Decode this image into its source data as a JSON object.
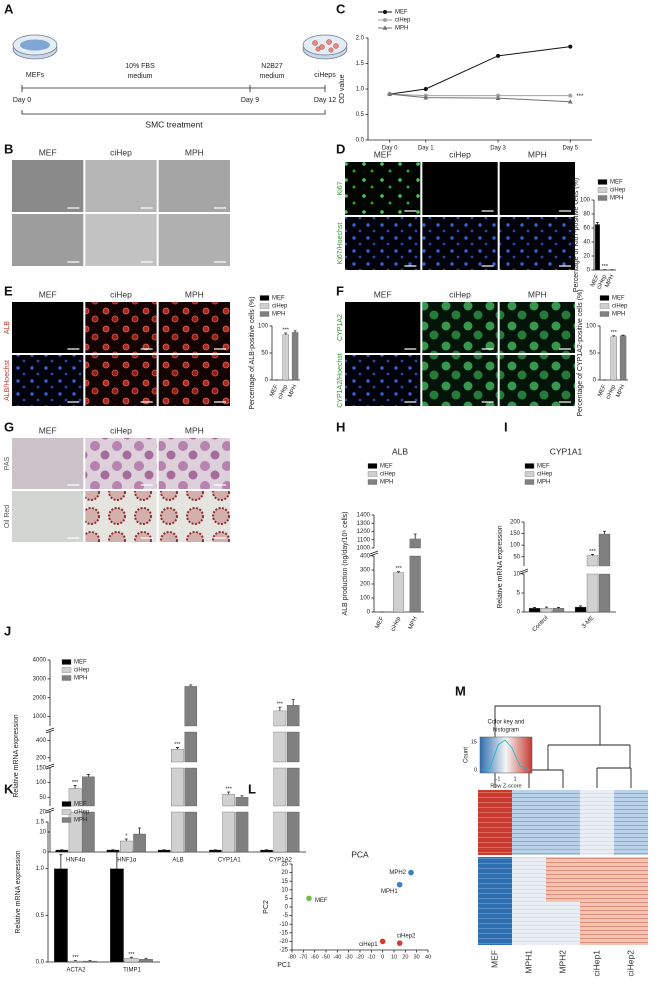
{
  "panel_letters": [
    "A",
    "B",
    "C",
    "D",
    "E",
    "F",
    "G",
    "H",
    "I",
    "J",
    "K",
    "L",
    "M"
  ],
  "diagram": {
    "start_cells": "MEFs",
    "medium_1": [
      "10% FBS",
      "medium"
    ],
    "medium_2": [
      "N2B27",
      "medium"
    ],
    "end_cells": "ciHeps",
    "days": [
      "Day 0",
      "Day 9",
      "Day 12"
    ],
    "treatment": "SMC treatment"
  },
  "images": {
    "B": {
      "columns": [
        "MEF",
        "ciHep",
        "MPH"
      ]
    },
    "D": {
      "columns": [
        "MEF",
        "ciHep",
        "MPH"
      ],
      "rows": [
        "Ki67",
        "Ki67/Hoechst"
      ]
    },
    "E": {
      "columns": [
        "MEF",
        "ciHep",
        "MPH"
      ],
      "rows": [
        "ALB",
        "ALB/Hoechst"
      ]
    },
    "F": {
      "columns": [
        "MEF",
        "ciHep",
        "MPH"
      ],
      "rows": [
        "CYP1A2",
        "CYP1A2/Hoechst"
      ]
    },
    "G": {
      "columns": [
        "MEF",
        "ciHep",
        "MPH"
      ],
      "rows": [
        "PAS",
        "Oil Red"
      ]
    }
  },
  "heatmap": {
    "key_title": [
      "Color key and",
      "histogram"
    ],
    "count_label": "Count",
    "count_ticks": [
      0,
      15
    ],
    "z_ticks": [
      -1,
      1
    ],
    "z_label": "Row Z-score",
    "columns": [
      "MEF",
      "MPH1",
      "MPH2",
      "ciHep1",
      "ciHep2"
    ]
  },
  "chart_data": [
    {
      "type": "line",
      "ylabel": "OD value",
      "x": [
        0,
        1,
        3,
        5
      ],
      "xlim": [
        -0.6,
        5.6
      ],
      "xticks": [
        {
          "value": 0,
          "label": "Day 0"
        },
        {
          "value": 1,
          "label": "Day 1"
        },
        {
          "value": 3,
          "label": "Day 3"
        },
        {
          "value": 5,
          "label": "Day 5"
        }
      ],
      "ylim": [
        0,
        2.0
      ],
      "yticks": [
        {
          "value": 0,
          "label": "0.0"
        },
        {
          "value": 0.5,
          "label": "0.5"
        },
        {
          "value": 1,
          "label": "1.0"
        },
        {
          "value": 1.5,
          "label": "1.5"
        },
        {
          "value": 2,
          "label": "2.0"
        }
      ],
      "series": [
        {
          "name": "MEF",
          "color": "#111111",
          "marker": "circle",
          "values": [
            0.9,
            1.0,
            1.65,
            1.83
          ]
        },
        {
          "name": "ciHep",
          "color": "#a0a0a0",
          "marker": "circle",
          "values": [
            0.9,
            0.87,
            0.87,
            0.87
          ]
        },
        {
          "name": "MPH",
          "color": "#707070",
          "marker": "triangle",
          "values": [
            0.9,
            0.83,
            0.82,
            0.75
          ]
        }
      ],
      "annotations": [
        {
          "text": "***",
          "series": 1
        }
      ]
    },
    {
      "type": "bar",
      "ylabel": "Percentage of Ki67-positive cells (%)",
      "categories": [
        "MEF",
        "ciHep",
        "MPH"
      ],
      "values": [
        65,
        0.5,
        0.5
      ],
      "errors": [
        3,
        0,
        0
      ],
      "colors": [
        "#000000",
        "#d0d0d0",
        "#808080"
      ],
      "ylim": [
        0,
        100
      ],
      "yticks": [
        0,
        20,
        40,
        60,
        80,
        100
      ],
      "annotations": [
        {
          "text": "***",
          "category": 1
        }
      ]
    },
    {
      "type": "bar",
      "ylabel": "Percentage of ALB-positive cells (%)",
      "categories": [
        "MEF",
        "ciHep",
        "MPH"
      ],
      "values": [
        0,
        84,
        88
      ],
      "errors": [
        0,
        3,
        3
      ],
      "colors": [
        "#000000",
        "#d0d0d0",
        "#808080"
      ],
      "ylim": [
        0,
        100
      ],
      "yticks": [
        0,
        50,
        100
      ],
      "annotations": [
        {
          "text": "***",
          "category": 1
        }
      ]
    },
    {
      "type": "bar",
      "ylabel": "Percentage of CYP1A2-positive cells (%)",
      "categories": [
        "MEF",
        "ciHep",
        "MPH"
      ],
      "values": [
        0,
        80,
        82
      ],
      "errors": [
        0,
        2,
        1
      ],
      "colors": [
        "#000000",
        "#d0d0d0",
        "#808080"
      ],
      "ylim": [
        0,
        100
      ],
      "yticks": [
        0,
        50,
        100
      ],
      "annotations": [
        {
          "text": "***",
          "category": 1
        }
      ]
    },
    {
      "type": "bar",
      "title": "ALB",
      "ylabel": "ALB production (ng/day/10⁶ cells)",
      "categories": [
        "MEF",
        "ciHep",
        "MPH"
      ],
      "values": [
        0,
        280,
        1110
      ],
      "errors": [
        0,
        8,
        60
      ],
      "colors": [
        "#000000",
        "#d0d0d0",
        "#808080"
      ],
      "y_segments": [
        {
          "ylim": [
            0,
            400
          ],
          "yticks": [
            0,
            100,
            200,
            300,
            400
          ]
        },
        {
          "ylim": [
            1000,
            1400
          ],
          "yticks": [
            1000,
            1100,
            1200,
            1300,
            1400
          ]
        }
      ],
      "annotations": [
        {
          "text": "***",
          "category": 1
        }
      ]
    },
    {
      "type": "bar",
      "title": "CYP1A1",
      "ylabel": "Relative mRNA expression",
      "categories": [
        "Control",
        "3-ME"
      ],
      "series": [
        {
          "name": "MEF",
          "color": "#000000",
          "values": [
            1,
            1.3
          ],
          "errors": [
            0.2,
            0.3
          ]
        },
        {
          "name": "ciHep",
          "color": "#d0d0d0",
          "values": [
            1,
            55
          ],
          "errors": [
            0.3,
            5
          ]
        },
        {
          "name": "MPH",
          "color": "#808080",
          "values": [
            1,
            148
          ],
          "errors": [
            0.2,
            12
          ]
        }
      ],
      "y_segments": [
        {
          "ylim": [
            0,
            10
          ],
          "yticks": [
            0,
            5,
            10
          ]
        },
        {
          "ylim": [
            10,
            200
          ],
          "yticks": [
            50,
            100,
            150,
            200
          ]
        }
      ],
      "annotations": [
        {
          "text": "***",
          "category": 1,
          "series": 1
        }
      ]
    },
    {
      "type": "bar",
      "ylabel": "Relative mRNA expression",
      "categories": [
        "HNF4α",
        "HNF1α",
        "ALB",
        "CYP1A1",
        "CYP1A2"
      ],
      "series": [
        {
          "name": "MEF",
          "color": "#000000",
          "values": [
            1,
            1,
            1,
            1,
            1
          ],
          "errors": [
            0.1,
            0.1,
            0.1,
            0.1,
            0.1
          ]
        },
        {
          "name": "ciHep",
          "color": "#d0d0d0",
          "values": [
            80,
            5.5,
            300,
            60,
            1300
          ],
          "errors": [
            10,
            1,
            20,
            8,
            200
          ]
        },
        {
          "name": "MPH",
          "color": "#808080",
          "values": [
            120,
            9,
            2600,
            50,
            1600
          ],
          "errors": [
            8,
            3,
            80,
            5,
            300
          ]
        }
      ],
      "y_segments": [
        {
          "ylim": [
            0,
            20
          ],
          "yticks": [
            0,
            10,
            20
          ]
        },
        {
          "ylim": [
            20,
            150
          ],
          "yticks": [
            50,
            100,
            150
          ]
        },
        {
          "ylim": [
            150,
            500
          ],
          "yticks": [
            200,
            400
          ]
        },
        {
          "ylim": [
            500,
            4000
          ],
          "yticks": [
            1000,
            2000,
            3000,
            4000
          ]
        }
      ],
      "annotations": [
        {
          "text": "***",
          "category": 0,
          "series": 1
        },
        {
          "text": "*",
          "category": 1,
          "series": 1
        },
        {
          "text": "***",
          "category": 2,
          "series": 1
        },
        {
          "text": "***",
          "category": 3,
          "series": 1
        },
        {
          "text": "***",
          "category": 4,
          "series": 1
        }
      ]
    },
    {
      "type": "bar",
      "ylabel": "Relative mRNA expression",
      "categories": [
        "ACTA2",
        "TIMP1"
      ],
      "series": [
        {
          "name": "MEF",
          "color": "#000000",
          "values": [
            1.0,
            1.0
          ],
          "errors": [
            0.15,
            0.18
          ]
        },
        {
          "name": "ciHep",
          "color": "#d0d0d0",
          "values": [
            0.01,
            0.04
          ],
          "errors": [
            0.005,
            0.01
          ]
        },
        {
          "name": "MPH",
          "color": "#808080",
          "values": [
            0.01,
            0.03
          ],
          "errors": [
            0.005,
            0.01
          ]
        }
      ],
      "ylim": [
        0,
        1.5
      ],
      "yticks": [
        {
          "value": 0,
          "label": "0.0"
        },
        {
          "value": 0.5,
          "label": "0.5"
        },
        {
          "value": 1,
          "label": "1.0"
        },
        {
          "value": 1.5,
          "label": "1.5"
        }
      ],
      "annotations": [
        {
          "text": "***",
          "category": 0,
          "series": 1
        },
        {
          "text": "***",
          "category": 1,
          "series": 1
        }
      ]
    },
    {
      "type": "scatter",
      "title": "PCA",
      "xlabel": "PC1",
      "ylabel": "PC2",
      "x": [
        -65,
        15,
        25,
        0,
        15
      ],
      "values": [
        5,
        13,
        20,
        -20,
        -21
      ],
      "labels": [
        "MEF",
        "MPH1",
        "MPH2",
        "ciHep1",
        "ciHep2"
      ],
      "colors": [
        "#6cbf4a",
        "#3b7fc4",
        "#3b7fc4",
        "#d63a2f",
        "#d63a2f"
      ],
      "xlim": [
        -80,
        40
      ],
      "xticks": [
        -80,
        -70,
        -60,
        -50,
        -40,
        -30,
        -20,
        -10,
        0,
        10,
        20,
        30,
        40
      ],
      "ylim": [
        -25,
        25
      ],
      "yticks": [
        -25,
        -20,
        -15,
        -10,
        -5,
        0,
        5,
        10,
        15,
        20,
        25
      ]
    }
  ]
}
